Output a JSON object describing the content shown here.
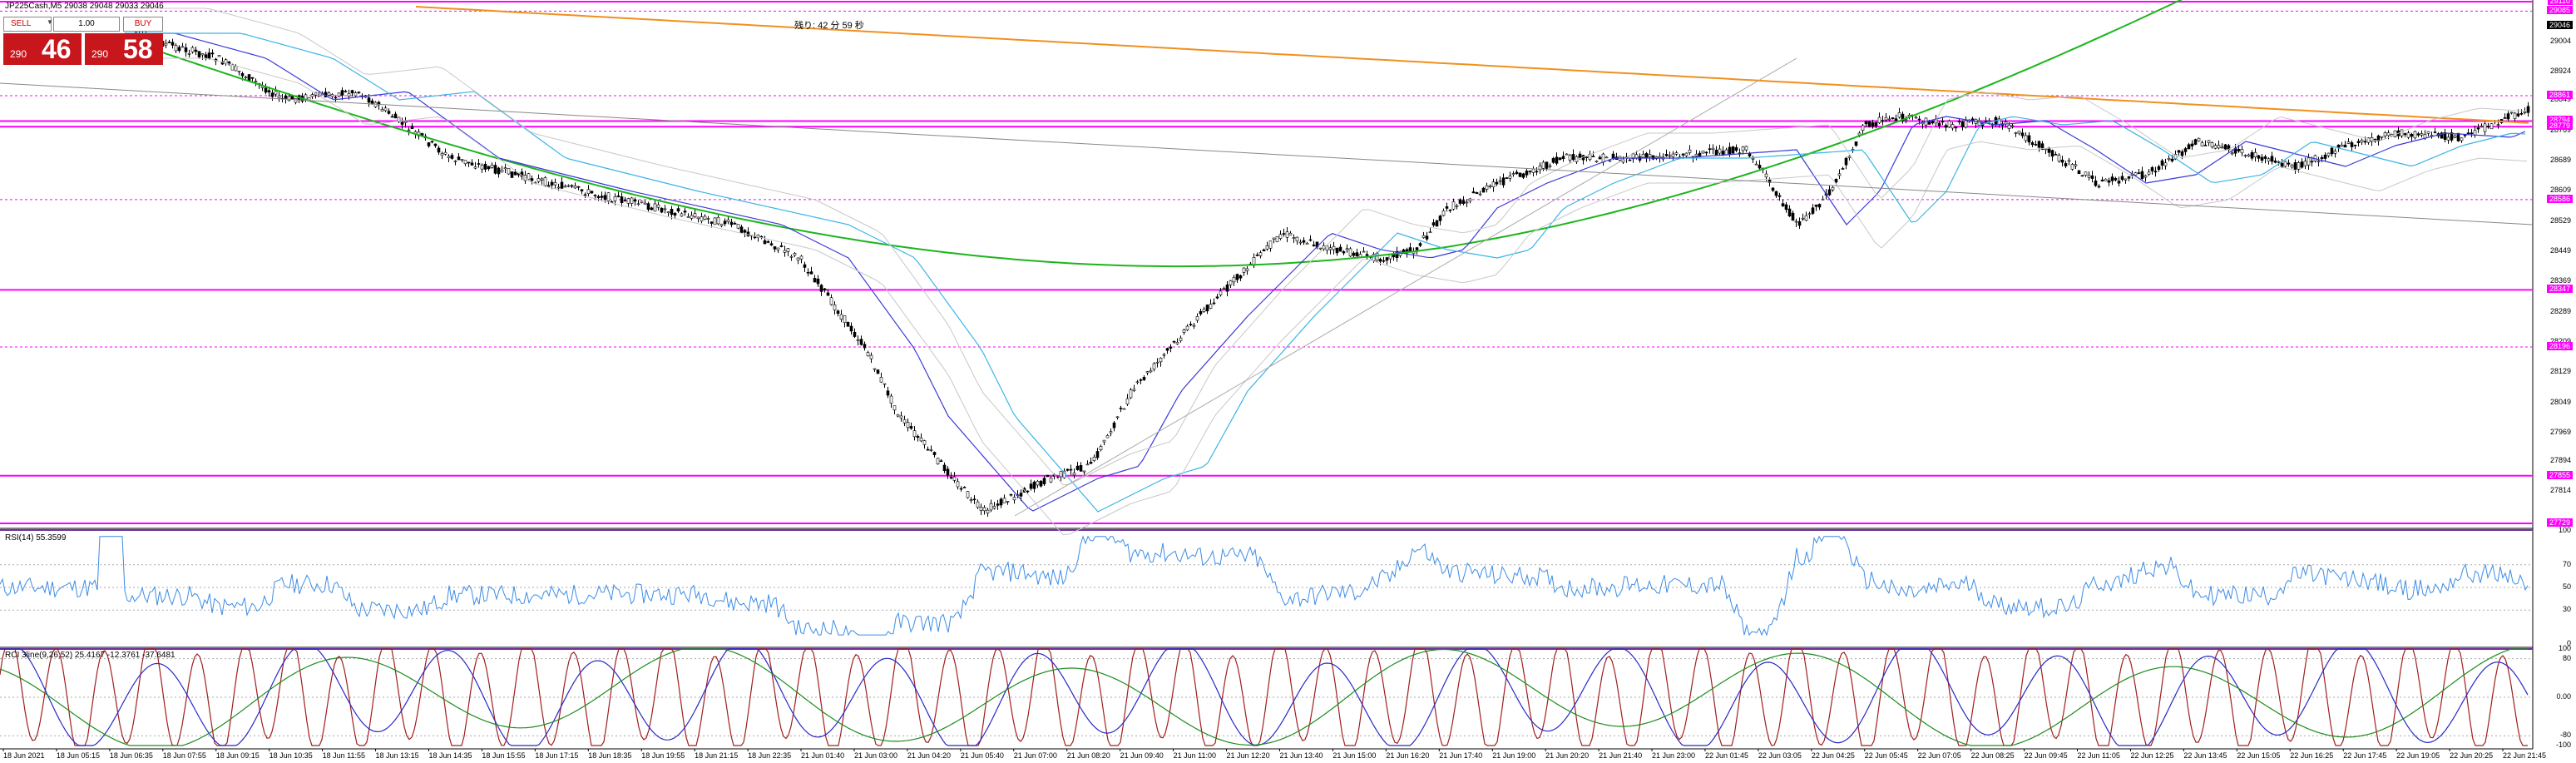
{
  "window": {
    "title": "JP225Cash,M5  29038 29048 29033 29046"
  },
  "trade_panel": {
    "sell_label": "SELL",
    "buy_label": "BUY",
    "lot_value": "1.00",
    "sell_price_small": "290",
    "sell_price_big": "46",
    "buy_price_small": "290",
    "buy_price_big": "58",
    "colors": {
      "panel": "#c8161d",
      "text": "#ffffff"
    }
  },
  "countdown": "残り:  42 分  59 秒",
  "indicators": {
    "rsi_label": "RSI(14) 55.3599",
    "rci_label": "RCI 3line(9,26,52) 25.4167 -12.3761 -37.6481"
  },
  "price_axis": [
    "29046",
    "29004",
    "28924",
    "28849",
    "28769",
    "28689",
    "28609",
    "28529",
    "28449",
    "28369",
    "28289",
    "28209",
    "28129",
    "28049",
    "27969",
    "27894",
    "27814"
  ],
  "price_tags": [
    {
      "value": "29110",
      "style": "magenta"
    },
    {
      "value": "29085",
      "style": "magenta"
    },
    {
      "value": "29046",
      "style": "dark"
    },
    {
      "value": "28861",
      "style": "magenta"
    },
    {
      "value": "28794",
      "style": "magenta"
    },
    {
      "value": "28779",
      "style": "magenta"
    },
    {
      "value": "28586",
      "style": "magenta"
    },
    {
      "value": "28347",
      "style": "magenta"
    },
    {
      "value": "28196",
      "style": "magenta"
    },
    {
      "value": "27855",
      "style": "magenta"
    },
    {
      "value": "27729",
      "style": "magenta"
    }
  ],
  "rsi_axis": [
    "100",
    "70",
    "50",
    "30",
    "0"
  ],
  "rci_axis": [
    "100",
    "80",
    "0.00",
    "-80",
    "-100"
  ],
  "time_axis": [
    "18 Jun 2021",
    "18 Jun 05:15",
    "18 Jun 06:35",
    "18 Jun 07:55",
    "18 Jun 09:15",
    "18 Jun 10:35",
    "18 Jun 11:55",
    "18 Jun 13:15",
    "18 Jun 14:35",
    "18 Jun 15:55",
    "18 Jun 17:15",
    "18 Jun 18:35",
    "18 Jun 19:55",
    "18 Jun 21:15",
    "18 Jun 22:35",
    "21 Jun 01:40",
    "21 Jun 03:00",
    "21 Jun 04:20",
    "21 Jun 05:40",
    "21 Jun 07:00",
    "21 Jun 08:20",
    "21 Jun 09:40",
    "21 Jun 11:00",
    "21 Jun 12:20",
    "21 Jun 13:40",
    "21 Jun 15:00",
    "21 Jun 16:20",
    "21 Jun 17:40",
    "21 Jun 19:00",
    "21 Jun 20:20",
    "21 Jun 21:40",
    "21 Jun 23:00",
    "22 Jun 01:45",
    "22 Jun 03:05",
    "22 Jun 04:25",
    "22 Jun 05:45",
    "22 Jun 07:05",
    "22 Jun 08:25",
    "22 Jun 09:45",
    "22 Jun 11:05",
    "22 Jun 12:25",
    "22 Jun 13:45",
    "22 Jun 15:05",
    "22 Jun 16:25",
    "22 Jun 17:45",
    "22 Jun 19:05",
    "22 Jun 20:25",
    "22 Jun 21:45"
  ],
  "colors": {
    "sma_long": "#1cb51c",
    "sma_orange": "#f0901e",
    "ma_blue": "#3a3ad8",
    "ma_cyan": "#3cb4e6",
    "level_magenta": "#ff00ff",
    "rsi_line": "#3c8ce6",
    "rci_short": "#a01e1e",
    "rci_mid": "#2828c8",
    "rci_long": "#1c8c1c"
  }
}
